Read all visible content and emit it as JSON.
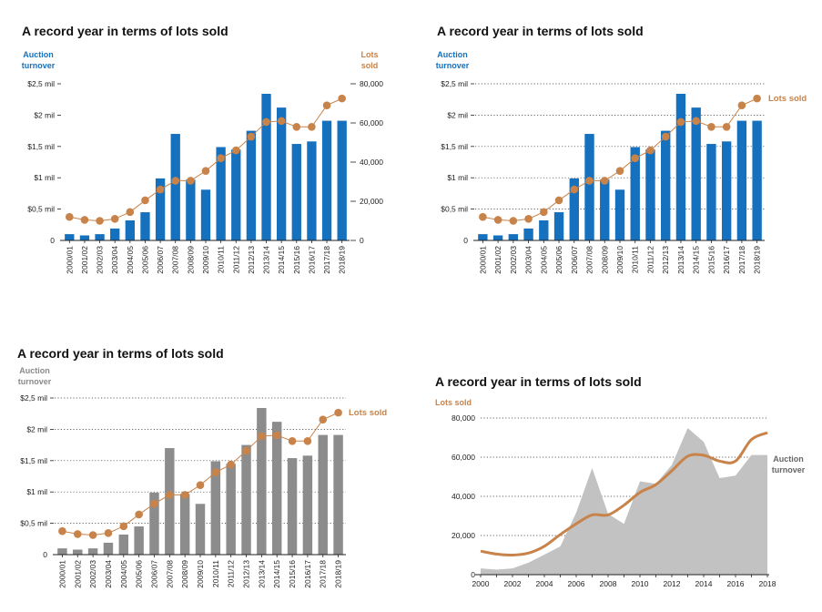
{
  "colors": {
    "blue": "#1570be",
    "orange": "#c8834a",
    "gray_bar": "#8c8c8c",
    "gray_area": "#c2c2c2",
    "gray_text": "#8a8a8a",
    "axis": "#222222"
  },
  "chart_data": [
    {
      "type": "bar",
      "title": "A record year in terms of lots sold",
      "left_axis_label": [
        "Auction",
        "turnover"
      ],
      "right_axis_label": [
        "Lots",
        "sold"
      ],
      "categories": [
        "2000/01",
        "2001/02",
        "2002/03",
        "2003/04",
        "2004/05",
        "2005/06",
        "2006/07",
        "2007/08",
        "2008/09",
        "2009/10",
        "2010/11",
        "2011/12",
        "2012/13",
        "2013/14",
        "2014/15",
        "2015/16",
        "2016/17",
        "2017/18",
        "2018/19"
      ],
      "yticks_left": [
        "0",
        "$0,5 mil",
        "$1 mil",
        "$1,5 mil",
        "$2 mil",
        "$2,5 mil"
      ],
      "yticks_right": [
        "0",
        "20,000",
        "40,000",
        "60,000",
        "80,000"
      ],
      "ylim_left": [
        0,
        2.5
      ],
      "ylim_right": [
        0,
        80000
      ],
      "series": [
        {
          "name": "Auction turnover",
          "type": "bar",
          "axis": "left",
          "values": [
            0.1,
            0.08,
            0.1,
            0.19,
            0.32,
            0.45,
            0.99,
            1.7,
            0.97,
            0.81,
            1.49,
            1.45,
            1.75,
            2.34,
            2.12,
            1.54,
            1.58,
            1.91,
            1.91
          ]
        },
        {
          "name": "Lots sold",
          "type": "line",
          "axis": "right",
          "values": [
            12000,
            10500,
            10000,
            11000,
            14500,
            20500,
            26000,
            30500,
            30500,
            35500,
            42000,
            46000,
            53000,
            60500,
            61000,
            58000,
            58000,
            69000,
            72500
          ]
        }
      ],
      "grid": false
    },
    {
      "type": "bar",
      "title": "A record year in terms of lots sold",
      "left_axis_label": [
        "Auction",
        "turnover"
      ],
      "line_label": "Lots sold",
      "categories": [
        "2000/01",
        "2001/02",
        "2002/03",
        "2003/04",
        "2004/05",
        "2005/06",
        "2006/07",
        "2007/08",
        "2008/09",
        "2009/10",
        "2010/11",
        "2011/12",
        "2012/13",
        "2013/14",
        "2014/15",
        "2015/16",
        "2016/17",
        "2017/18",
        "2018/19"
      ],
      "yticks_left": [
        "0",
        "$0,5 mil",
        "$1 mil",
        "$1,5 mil",
        "$2 mil",
        "$2,5 mil"
      ],
      "ylim_left": [
        0,
        2.5
      ],
      "series": [
        {
          "name": "Auction turnover",
          "type": "bar",
          "values": [
            0.1,
            0.08,
            0.1,
            0.19,
            0.32,
            0.45,
            0.99,
            1.7,
            0.97,
            0.81,
            1.49,
            1.45,
            1.75,
            2.34,
            2.12,
            1.54,
            1.58,
            1.91,
            1.91
          ]
        },
        {
          "name": "Lots sold",
          "type": "line",
          "values": [
            12000,
            10500,
            10000,
            11000,
            14500,
            20500,
            26000,
            30500,
            30500,
            35500,
            42000,
            46000,
            53000,
            60500,
            61000,
            58000,
            58000,
            69000,
            72500
          ]
        }
      ],
      "grid": "horizontal dotted"
    },
    {
      "type": "bar",
      "title": "A record year in terms of lots sold",
      "left_axis_label": [
        "Auction",
        "turnover"
      ],
      "line_label": "Lots sold",
      "categories": [
        "2000/01",
        "2001/02",
        "2002/03",
        "2003/04",
        "2004/05",
        "2005/06",
        "2006/07",
        "2007/08",
        "2008/09",
        "2009/10",
        "2010/11",
        "2011/12",
        "2012/13",
        "2013/14",
        "2014/15",
        "2015/16",
        "2016/17",
        "2017/18",
        "2018/19"
      ],
      "yticks_left": [
        "0",
        "$0,5 mil",
        "$1 mil",
        "$1,5 mil",
        "$2 mil",
        "$2,5 mil"
      ],
      "ylim_left": [
        0,
        2.5
      ],
      "series": [
        {
          "name": "Auction turnover",
          "type": "bar",
          "values": [
            0.1,
            0.08,
            0.1,
            0.19,
            0.32,
            0.45,
            0.99,
            1.7,
            0.97,
            0.81,
            1.49,
            1.45,
            1.75,
            2.34,
            2.12,
            1.54,
            1.58,
            1.91,
            1.91
          ]
        },
        {
          "name": "Lots sold",
          "type": "line",
          "values": [
            12000,
            10500,
            10000,
            11000,
            14500,
            20500,
            26000,
            30500,
            30500,
            35500,
            42000,
            46000,
            53000,
            60500,
            61000,
            58000,
            58000,
            69000,
            72500
          ]
        }
      ],
      "grid": "horizontal dotted"
    },
    {
      "type": "area",
      "title": "A record year in terms of lots sold",
      "left_axis_label": "Lots sold",
      "area_label": [
        "Auction",
        "turnover"
      ],
      "x": [
        2000,
        2001,
        2002,
        2003,
        2004,
        2005,
        2006,
        2007,
        2008,
        2009,
        2010,
        2011,
        2012,
        2013,
        2014,
        2015,
        2016,
        2017,
        2018
      ],
      "xticks": [
        "2000",
        "2002",
        "2004",
        "2006",
        "2008",
        "2010",
        "2012",
        "2014",
        "2016",
        "2018"
      ],
      "yticks": [
        "0",
        "20,000",
        "40,000",
        "60,000",
        "80,000"
      ],
      "ylim": [
        0,
        80000
      ],
      "series": [
        {
          "name": "Auction turnover",
          "type": "area",
          "values": [
            0.1,
            0.08,
            0.1,
            0.19,
            0.32,
            0.45,
            0.99,
            1.7,
            0.97,
            0.81,
            1.49,
            1.45,
            1.75,
            2.34,
            2.12,
            1.54,
            1.58,
            1.91,
            1.91
          ]
        },
        {
          "name": "Lots sold",
          "type": "line",
          "values": [
            12000,
            10500,
            10000,
            11000,
            14500,
            20500,
            26000,
            30500,
            30500,
            35500,
            42000,
            46000,
            53000,
            60500,
            61000,
            58000,
            58000,
            69000,
            72500
          ]
        }
      ],
      "grid": "horizontal dotted"
    }
  ]
}
